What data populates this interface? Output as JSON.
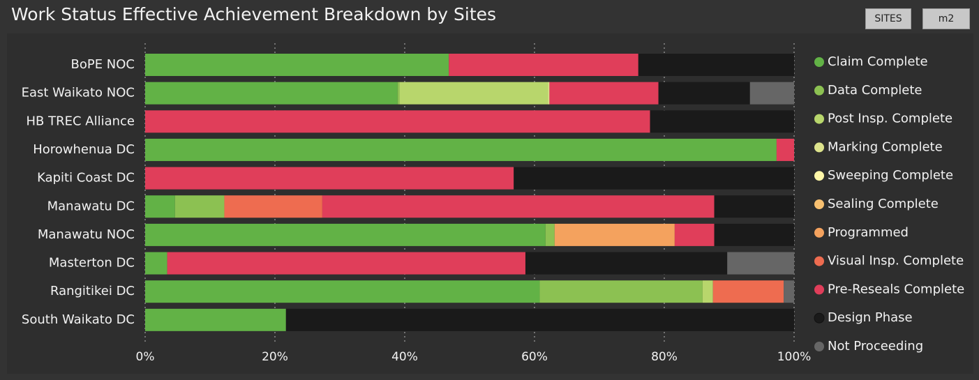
{
  "chart_data": {
    "type": "stacked_bar_horizontal",
    "title": "Work Status Effective Achievement Breakdown by Sites",
    "buttons": [
      "SITES",
      "m2"
    ],
    "categories": [
      "BoPE NOC",
      "East Waikato NOC",
      "HB TREC Alliance",
      "Horowhenua DC",
      "Kapiti Coast DC",
      "Manawatu DC",
      "Manawatu NOC",
      "Masterton DC",
      "Rangitikei DC",
      "South Waikato DC"
    ],
    "series": [
      {
        "name": "Claim Complete",
        "color": "#62b246",
        "values": [
          46.8,
          38.9,
          0,
          97.3,
          0,
          4.6,
          61.7,
          3.4,
          60.8,
          21.7
        ]
      },
      {
        "name": "Data Complete",
        "color": "#8cc152",
        "values": [
          0,
          0.3,
          0,
          0,
          0,
          7.6,
          1.4,
          0,
          25.1,
          0
        ]
      },
      {
        "name": "Post Insp. Complete",
        "color": "#b8d66c",
        "values": [
          0,
          22.9,
          0,
          0,
          0,
          0,
          0,
          0,
          1.6,
          0
        ]
      },
      {
        "name": "Marking Complete",
        "color": "#dde38c",
        "values": [
          0,
          0.2,
          0,
          0,
          0,
          0,
          0,
          0,
          0,
          0
        ]
      },
      {
        "name": "Sweeping Complete",
        "color": "#fff7a8",
        "values": [
          0,
          0,
          0,
          0,
          0,
          0,
          0,
          0,
          0,
          0
        ]
      },
      {
        "name": "Sealing Complete",
        "color": "#f8c070",
        "values": [
          0,
          0,
          0,
          0,
          0,
          0,
          0,
          0,
          0,
          0
        ]
      },
      {
        "name": "Programmed",
        "color": "#f4a25e",
        "values": [
          0,
          0,
          0,
          0,
          0,
          0,
          18.5,
          0,
          0,
          0
        ]
      },
      {
        "name": "Visual Insp. Complete",
        "color": "#ee6c50",
        "values": [
          0,
          0,
          0,
          0,
          0,
          15.1,
          0,
          0,
          10.9,
          0
        ]
      },
      {
        "name": "Pre-Reseals Complete",
        "color": "#e03e5a",
        "values": [
          29.2,
          16.8,
          77.8,
          2.7,
          56.8,
          60.4,
          6.1,
          55.2,
          0,
          0
        ]
      },
      {
        "name": "Design Phase",
        "color": "#1a1a1a",
        "values": [
          24.0,
          14.1,
          22.2,
          0,
          43.2,
          12.3,
          12.3,
          31.1,
          0,
          78.3
        ]
      },
      {
        "name": "Not Proceeding",
        "color": "#666666",
        "values": [
          0,
          6.8,
          0,
          0,
          0,
          0,
          0,
          10.3,
          1.6,
          0
        ]
      }
    ],
    "xlim": [
      0,
      100
    ],
    "xticks": [
      {
        "value": 0,
        "label": "0%"
      },
      {
        "value": 20,
        "label": "20%"
      },
      {
        "value": 40,
        "label": "40%"
      },
      {
        "value": 60,
        "label": "60%"
      },
      {
        "value": 80,
        "label": "80%"
      },
      {
        "value": 100,
        "label": "100%"
      }
    ],
    "grid": true,
    "legend": "right"
  }
}
